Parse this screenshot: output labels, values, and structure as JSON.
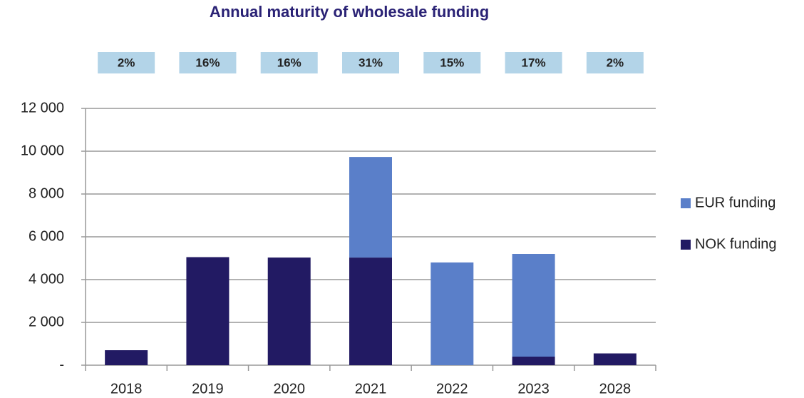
{
  "chart_data": {
    "type": "stacked_bar",
    "title": "Annual maturity of wholesale funding",
    "share_labels": [
      "2%",
      "16%",
      "16%",
      "31%",
      "15%",
      "17%",
      "2%"
    ],
    "categories": [
      "2018",
      "2019",
      "2020",
      "2021",
      "2022",
      "2023",
      "2028"
    ],
    "series": [
      {
        "name": "NOK funding",
        "color": "#221a63",
        "values": [
          700,
          5050,
          5030,
          5030,
          0,
          400,
          550
        ]
      },
      {
        "name": "EUR funding",
        "color": "#5a7fc9",
        "values": [
          0,
          0,
          0,
          4700,
          4800,
          4800,
          0
        ]
      }
    ],
    "ylim": [
      0,
      12000
    ],
    "yticks": [
      {
        "value": 0,
        "label": "-"
      },
      {
        "value": 2000,
        "label": "2 000"
      },
      {
        "value": 4000,
        "label": "4 000"
      },
      {
        "value": 6000,
        "label": "6 000"
      },
      {
        "value": 8000,
        "label": "8 000"
      },
      {
        "value": 10000,
        "label": "10 000"
      },
      {
        "value": 12000,
        "label": "12 000"
      }
    ],
    "grid": true,
    "legend": "right"
  }
}
